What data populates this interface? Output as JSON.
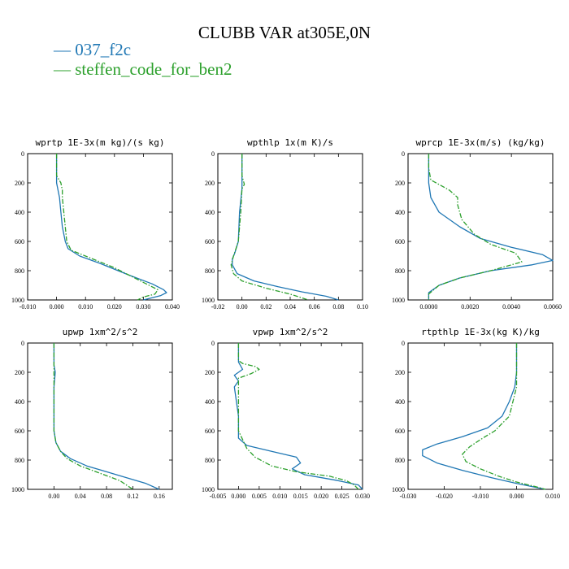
{
  "figure": {
    "title": "CLUBB VAR at305E,0N",
    "legend": [
      {
        "name": "037_f2c",
        "color": "#1f77b4",
        "dash": "solid"
      },
      {
        "name": "steffen_code_for_ben2",
        "color": "#2ca02c",
        "dash": "dashdot"
      }
    ]
  },
  "chart_data": [
    {
      "type": "line",
      "title": "wprtp  1E-3x(m kg)/(s kg)",
      "xlim": [
        -0.01,
        0.04
      ],
      "xticks": [
        -0.01,
        0.0,
        0.01,
        0.02,
        0.03,
        0.04
      ],
      "xticklabels": [
        "-0.010",
        "0.000",
        "0.010",
        "0.020",
        "0.030",
        "0.040"
      ],
      "ylim": [
        1000,
        0
      ],
      "yticks": [
        0,
        200,
        400,
        600,
        800,
        1000
      ],
      "yticklabels": [
        "0",
        "200",
        "400",
        "600",
        "800",
        "1000"
      ],
      "series": [
        {
          "name": "037_f2c",
          "points": [
            [
              0.0,
              0
            ],
            [
              0.0,
              100
            ],
            [
              0.0,
              200
            ],
            [
              0.001,
              300
            ],
            [
              0.0015,
              400
            ],
            [
              0.002,
              500
            ],
            [
              0.003,
              600
            ],
            [
              0.004,
              650
            ],
            [
              0.008,
              700
            ],
            [
              0.015,
              750
            ],
            [
              0.025,
              830
            ],
            [
              0.033,
              890
            ],
            [
              0.037,
              930
            ],
            [
              0.038,
              950
            ],
            [
              0.036,
              970
            ],
            [
              0.03,
              1000
            ]
          ]
        },
        {
          "name": "steffen_code_for_ben2",
          "points": [
            [
              0.0,
              0
            ],
            [
              0.0,
              150
            ],
            [
              0.0015,
              200
            ],
            [
              0.002,
              250
            ],
            [
              0.002,
              300
            ],
            [
              0.0025,
              400
            ],
            [
              0.003,
              500
            ],
            [
              0.0035,
              600
            ],
            [
              0.005,
              660
            ],
            [
              0.01,
              700
            ],
            [
              0.02,
              780
            ],
            [
              0.03,
              880
            ],
            [
              0.035,
              930
            ],
            [
              0.034,
              960
            ],
            [
              0.03,
              980
            ],
            [
              0.028,
              1000
            ]
          ]
        }
      ]
    },
    {
      "type": "line",
      "title": "wpthlp  1x(m K)/s",
      "xlim": [
        -0.02,
        0.1
      ],
      "xticks": [
        -0.02,
        0.0,
        0.02,
        0.04,
        0.06,
        0.08,
        0.1
      ],
      "xticklabels": [
        "-0.02",
        "0.00",
        "0.02",
        "0.04",
        "0.06",
        "0.08",
        "0.10"
      ],
      "ylim": [
        1000,
        0
      ],
      "yticks": [
        0,
        200,
        400,
        600,
        800,
        1000
      ],
      "yticklabels": [
        "0",
        "200",
        "400",
        "600",
        "800",
        "1000"
      ],
      "series": [
        {
          "name": "037_f2c",
          "points": [
            [
              0.0,
              0
            ],
            [
              0.0,
              100
            ],
            [
              0.0,
              200
            ],
            [
              0.0,
              240
            ],
            [
              -0.002,
              400
            ],
            [
              -0.003,
              600
            ],
            [
              -0.006,
              680
            ],
            [
              -0.008,
              720
            ],
            [
              -0.008,
              760
            ],
            [
              -0.004,
              820
            ],
            [
              0.01,
              870
            ],
            [
              0.03,
              910
            ],
            [
              0.05,
              945
            ],
            [
              0.07,
              975
            ],
            [
              0.08,
              1000
            ]
          ]
        },
        {
          "name": "steffen_code_for_ben2",
          "points": [
            [
              0.0,
              0
            ],
            [
              0.0,
              150
            ],
            [
              0.002,
              210
            ],
            [
              0.0,
              240
            ],
            [
              -0.001,
              400
            ],
            [
              -0.003,
              600
            ],
            [
              -0.007,
              700
            ],
            [
              -0.009,
              760
            ],
            [
              -0.007,
              820
            ],
            [
              0.0,
              870
            ],
            [
              0.02,
              920
            ],
            [
              0.04,
              960
            ],
            [
              0.055,
              1000
            ]
          ]
        }
      ]
    },
    {
      "type": "line",
      "title": "wprcp  1E-3x(m/s) (kg/kg)",
      "xlim": [
        -0.001,
        0.006
      ],
      "xticks": [
        0.0,
        0.002,
        0.004,
        0.006
      ],
      "xticklabels": [
        "0.0000",
        "0.0020",
        "0.0040",
        "0.0060"
      ],
      "ylim": [
        1000,
        0
      ],
      "yticks": [
        0,
        200,
        400,
        600,
        800,
        1000
      ],
      "yticklabels": [
        "0",
        "200",
        "400",
        "600",
        "800",
        "1000"
      ],
      "series": [
        {
          "name": "037_f2c",
          "points": [
            [
              0.0,
              0
            ],
            [
              0.0,
              100
            ],
            [
              0.0,
              200
            ],
            [
              0.0001,
              300
            ],
            [
              0.0005,
              400
            ],
            [
              0.0015,
              500
            ],
            [
              0.0025,
              580
            ],
            [
              0.004,
              640
            ],
            [
              0.0055,
              690
            ],
            [
              0.006,
              730
            ],
            [
              0.005,
              760
            ],
            [
              0.003,
              800
            ],
            [
              0.0015,
              850
            ],
            [
              0.0005,
              900
            ],
            [
              0.0,
              950
            ],
            [
              0.0,
              1000
            ]
          ]
        },
        {
          "name": "steffen_code_for_ben2",
          "points": [
            [
              0.0,
              0
            ],
            [
              0.0,
              100
            ],
            [
              0.0001,
              180
            ],
            [
              0.001,
              250
            ],
            [
              0.0014,
              300
            ],
            [
              0.0014,
              350
            ],
            [
              0.0016,
              450
            ],
            [
              0.0022,
              550
            ],
            [
              0.003,
              620
            ],
            [
              0.0042,
              680
            ],
            [
              0.0045,
              740
            ],
            [
              0.003,
              800
            ],
            [
              0.0015,
              850
            ],
            [
              0.0005,
              900
            ],
            [
              0.0,
              960
            ],
            [
              0.0,
              1000
            ]
          ]
        }
      ]
    },
    {
      "type": "line",
      "title": "upwp  1xm^2/s^2",
      "xlim": [
        -0.04,
        0.18
      ],
      "xticks": [
        0.0,
        0.04,
        0.08,
        0.12,
        0.16
      ],
      "xticklabels": [
        "0.00",
        "0.04",
        "0.08",
        "0.12",
        "0.16"
      ],
      "ylim": [
        1000,
        0
      ],
      "yticks": [
        0,
        200,
        400,
        600,
        800,
        1000
      ],
      "yticklabels": [
        "0",
        "200",
        "400",
        "600",
        "800",
        "1000"
      ],
      "series": [
        {
          "name": "037_f2c",
          "points": [
            [
              0.0,
              0
            ],
            [
              0.0,
              150
            ],
            [
              0.002,
              200
            ],
            [
              0.0,
              300
            ],
            [
              0.0,
              500
            ],
            [
              0.0,
              600
            ],
            [
              0.003,
              680
            ],
            [
              0.01,
              740
            ],
            [
              0.025,
              790
            ],
            [
              0.05,
              840
            ],
            [
              0.08,
              880
            ],
            [
              0.11,
              920
            ],
            [
              0.14,
              960
            ],
            [
              0.16,
              1000
            ]
          ]
        },
        {
          "name": "steffen_code_for_ben2",
          "points": [
            [
              0.0,
              0
            ],
            [
              0.0,
              200
            ],
            [
              0.0,
              400
            ],
            [
              0.0,
              600
            ],
            [
              0.003,
              680
            ],
            [
              0.01,
              740
            ],
            [
              0.02,
              790
            ],
            [
              0.04,
              840
            ],
            [
              0.07,
              890
            ],
            [
              0.1,
              940
            ],
            [
              0.12,
              1000
            ]
          ]
        }
      ]
    },
    {
      "type": "line",
      "title": "vpwp  1xm^2/s^2",
      "xlim": [
        -0.005,
        0.03
      ],
      "xticks": [
        -0.005,
        0.0,
        0.005,
        0.01,
        0.015,
        0.02,
        0.025,
        0.03
      ],
      "xticklabels": [
        "-0.005",
        "0.000",
        "0.005",
        "0.010",
        "0.015",
        "0.020",
        "0.025",
        "0.030"
      ],
      "ylim": [
        1000,
        0
      ],
      "yticks": [
        0,
        200,
        400,
        600,
        800,
        1000
      ],
      "yticklabels": [
        "0",
        "200",
        "400",
        "600",
        "800",
        "1000"
      ],
      "series": [
        {
          "name": "037_f2c",
          "points": [
            [
              0.0,
              0
            ],
            [
              0.0,
              100
            ],
            [
              0.0,
              130
            ],
            [
              0.001,
              180
            ],
            [
              -0.001,
              220
            ],
            [
              0.0,
              260
            ],
            [
              -0.001,
              300
            ],
            [
              0.0,
              500
            ],
            [
              0.0,
              650
            ],
            [
              0.002,
              700
            ],
            [
              0.008,
              740
            ],
            [
              0.014,
              780
            ],
            [
              0.015,
              820
            ],
            [
              0.013,
              860
            ],
            [
              0.016,
              900
            ],
            [
              0.024,
              940
            ],
            [
              0.029,
              970
            ],
            [
              0.03,
              1000
            ]
          ]
        },
        {
          "name": "steffen_code_for_ben2",
          "points": [
            [
              0.0,
              0
            ],
            [
              0.0,
              120
            ],
            [
              0.001,
              140
            ],
            [
              0.004,
              160
            ],
            [
              0.005,
              180
            ],
            [
              0.003,
              210
            ],
            [
              0.0,
              240
            ],
            [
              0.0,
              400
            ],
            [
              0.0,
              600
            ],
            [
              0.001,
              660
            ],
            [
              0.002,
              720
            ],
            [
              0.004,
              780
            ],
            [
              0.008,
              840
            ],
            [
              0.014,
              880
            ],
            [
              0.022,
              910
            ],
            [
              0.026,
              940
            ],
            [
              0.028,
              970
            ],
            [
              0.029,
              1000
            ]
          ]
        }
      ]
    },
    {
      "type": "line",
      "title": "rtpthlp  1E-3x(kg K)/kg",
      "xlim": [
        -0.03,
        0.01
      ],
      "xticks": [
        -0.03,
        -0.02,
        -0.01,
        0.0,
        0.01
      ],
      "xticklabels": [
        "-0.030",
        "-0.020",
        "-0.010",
        "0.000",
        "0.010"
      ],
      "ylim": [
        1000,
        0
      ],
      "yticks": [
        0,
        200,
        400,
        600,
        800,
        1000
      ],
      "yticklabels": [
        "0",
        "200",
        "400",
        "600",
        "800",
        "1000"
      ],
      "series": [
        {
          "name": "037_f2c",
          "points": [
            [
              0.0,
              0
            ],
            [
              0.0,
              100
            ],
            [
              0.0,
              200
            ],
            [
              -0.0005,
              300
            ],
            [
              -0.002,
              400
            ],
            [
              -0.004,
              500
            ],
            [
              -0.008,
              580
            ],
            [
              -0.015,
              640
            ],
            [
              -0.022,
              690
            ],
            [
              -0.026,
              730
            ],
            [
              -0.026,
              770
            ],
            [
              -0.022,
              820
            ],
            [
              -0.015,
              870
            ],
            [
              -0.007,
              920
            ],
            [
              0.0,
              960
            ],
            [
              0.008,
              1000
            ]
          ]
        },
        {
          "name": "steffen_code_for_ben2",
          "points": [
            [
              0.0,
              0
            ],
            [
              0.0,
              100
            ],
            [
              0.0,
              200
            ],
            [
              0.0,
              300
            ],
            [
              -0.001,
              400
            ],
            [
              -0.002,
              500
            ],
            [
              -0.006,
              600
            ],
            [
              -0.01,
              660
            ],
            [
              -0.013,
              710
            ],
            [
              -0.015,
              760
            ],
            [
              -0.014,
              810
            ],
            [
              -0.01,
              860
            ],
            [
              -0.005,
              910
            ],
            [
              0.0,
              950
            ],
            [
              0.005,
              980
            ],
            [
              0.008,
              1000
            ]
          ]
        }
      ]
    }
  ]
}
